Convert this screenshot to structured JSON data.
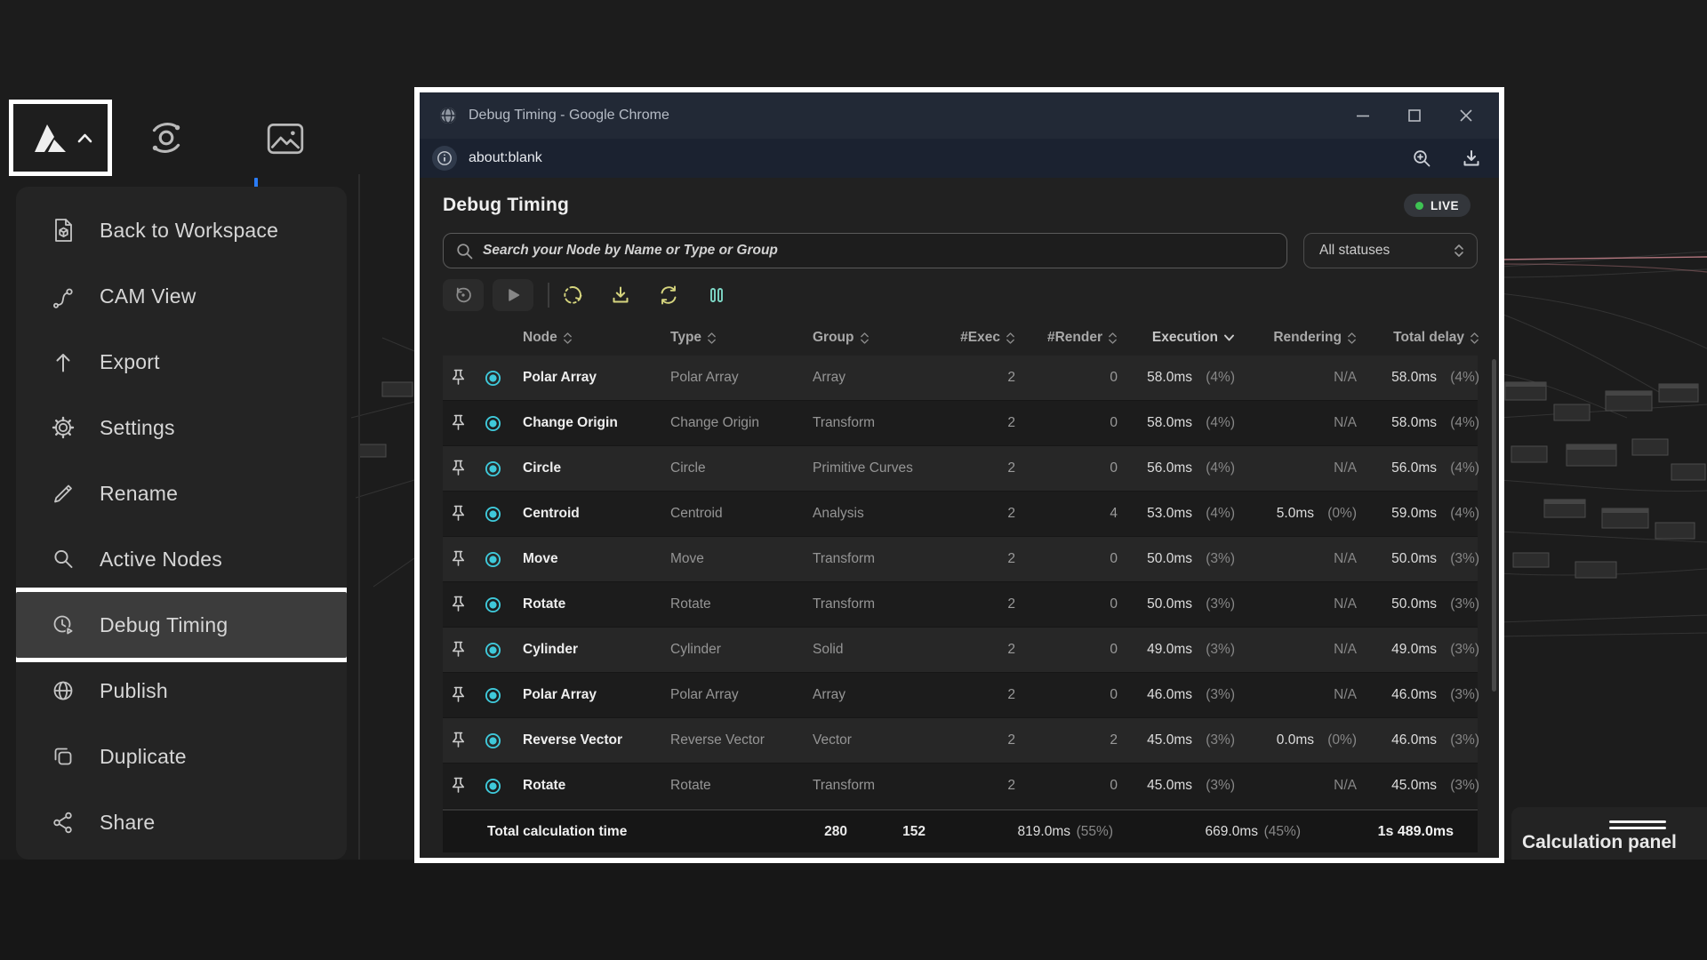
{
  "colors": {
    "accent_teal": "#3fc9da",
    "accent_yellow": "#d6d57e",
    "live_green": "#3ec253",
    "wire_pink": "#e2919c",
    "highlight_border": "#ffffff"
  },
  "menu": {
    "items": [
      {
        "label": "Back to Workspace",
        "icon": "workspace-file-icon",
        "active": false
      },
      {
        "label": "CAM View",
        "icon": "cam-path-icon",
        "active": false
      },
      {
        "label": "Export",
        "icon": "arrow-up-icon",
        "active": false
      },
      {
        "label": "Settings",
        "icon": "gear-icon",
        "active": false
      },
      {
        "label": "Rename",
        "icon": "pencil-icon",
        "active": false
      },
      {
        "label": "Active Nodes",
        "icon": "magnifier-icon",
        "active": false
      },
      {
        "label": "Debug Timing",
        "icon": "clock-play-icon",
        "active": true
      },
      {
        "label": "Publish",
        "icon": "globe-icon",
        "active": false
      },
      {
        "label": "Duplicate",
        "icon": "copy-icon",
        "active": false
      },
      {
        "label": "Share",
        "icon": "share-icon",
        "active": false
      }
    ]
  },
  "window": {
    "title": "Debug Timing - Google Chrome",
    "url": "about:blank",
    "page": {
      "heading": "Debug Timing",
      "live_label": "LIVE",
      "search_placeholder": "Search your Node by Name or Type or Group",
      "status_filter": "All statuses",
      "toolbar_icons": [
        "history-icon",
        "play-icon",
        "dotted-refresh-icon",
        "download-icon",
        "sync-icon",
        "pause-icon"
      ],
      "table": {
        "columns": [
          {
            "label": "Node",
            "sort": "both"
          },
          {
            "label": "Type",
            "sort": "both"
          },
          {
            "label": "Group",
            "sort": "both"
          },
          {
            "label": "#Exec",
            "sort": "both"
          },
          {
            "label": "#Render",
            "sort": "both"
          },
          {
            "label": "Execution",
            "sort": "desc"
          },
          {
            "label": "Rendering",
            "sort": "both"
          },
          {
            "label": "Total delay",
            "sort": "both"
          }
        ],
        "rows": [
          {
            "node": "Polar Array",
            "type": "Polar Array",
            "group": "Array",
            "exec": "2",
            "render": "0",
            "execution": "58.0ms",
            "execution_pct": "(4%)",
            "rendering": "N/A",
            "rendering_pct": "",
            "total": "58.0ms",
            "total_pct": "(4%)"
          },
          {
            "node": "Change Origin",
            "type": "Change Origin",
            "group": "Transform",
            "exec": "2",
            "render": "0",
            "execution": "58.0ms",
            "execution_pct": "(4%)",
            "rendering": "N/A",
            "rendering_pct": "",
            "total": "58.0ms",
            "total_pct": "(4%)"
          },
          {
            "node": "Circle",
            "type": "Circle",
            "group": "Primitive Curves",
            "exec": "2",
            "render": "0",
            "execution": "56.0ms",
            "execution_pct": "(4%)",
            "rendering": "N/A",
            "rendering_pct": "",
            "total": "56.0ms",
            "total_pct": "(4%)"
          },
          {
            "node": "Centroid",
            "type": "Centroid",
            "group": "Analysis",
            "exec": "2",
            "render": "4",
            "execution": "53.0ms",
            "execution_pct": "(4%)",
            "rendering": "5.0ms",
            "rendering_pct": "(0%)",
            "total": "59.0ms",
            "total_pct": "(4%)"
          },
          {
            "node": "Move",
            "type": "Move",
            "group": "Transform",
            "exec": "2",
            "render": "0",
            "execution": "50.0ms",
            "execution_pct": "(3%)",
            "rendering": "N/A",
            "rendering_pct": "",
            "total": "50.0ms",
            "total_pct": "(3%)"
          },
          {
            "node": "Rotate",
            "type": "Rotate",
            "group": "Transform",
            "exec": "2",
            "render": "0",
            "execution": "50.0ms",
            "execution_pct": "(3%)",
            "rendering": "N/A",
            "rendering_pct": "",
            "total": "50.0ms",
            "total_pct": "(3%)"
          },
          {
            "node": "Cylinder",
            "type": "Cylinder",
            "group": "Solid",
            "exec": "2",
            "render": "0",
            "execution": "49.0ms",
            "execution_pct": "(3%)",
            "rendering": "N/A",
            "rendering_pct": "",
            "total": "49.0ms",
            "total_pct": "(3%)"
          },
          {
            "node": "Polar Array",
            "type": "Polar Array",
            "group": "Array",
            "exec": "2",
            "render": "0",
            "execution": "46.0ms",
            "execution_pct": "(3%)",
            "rendering": "N/A",
            "rendering_pct": "",
            "total": "46.0ms",
            "total_pct": "(3%)"
          },
          {
            "node": "Reverse Vector",
            "type": "Reverse Vector",
            "group": "Vector",
            "exec": "2",
            "render": "2",
            "execution": "45.0ms",
            "execution_pct": "(3%)",
            "rendering": "0.0ms",
            "rendering_pct": "(0%)",
            "total": "46.0ms",
            "total_pct": "(3%)"
          },
          {
            "node": "Rotate",
            "type": "Rotate",
            "group": "Transform",
            "exec": "2",
            "render": "0",
            "execution": "45.0ms",
            "execution_pct": "(3%)",
            "rendering": "N/A",
            "rendering_pct": "",
            "total": "45.0ms",
            "total_pct": "(3%)"
          }
        ],
        "footer": {
          "label": "Total calculation time",
          "exec": "280",
          "render": "152",
          "execution": "819.0ms",
          "execution_pct": "(55%)",
          "rendering": "669.0ms",
          "rendering_pct": "(45%)",
          "total": "1s 489.0ms"
        }
      }
    }
  },
  "calculation_panel": {
    "label": "Calculation panel"
  }
}
